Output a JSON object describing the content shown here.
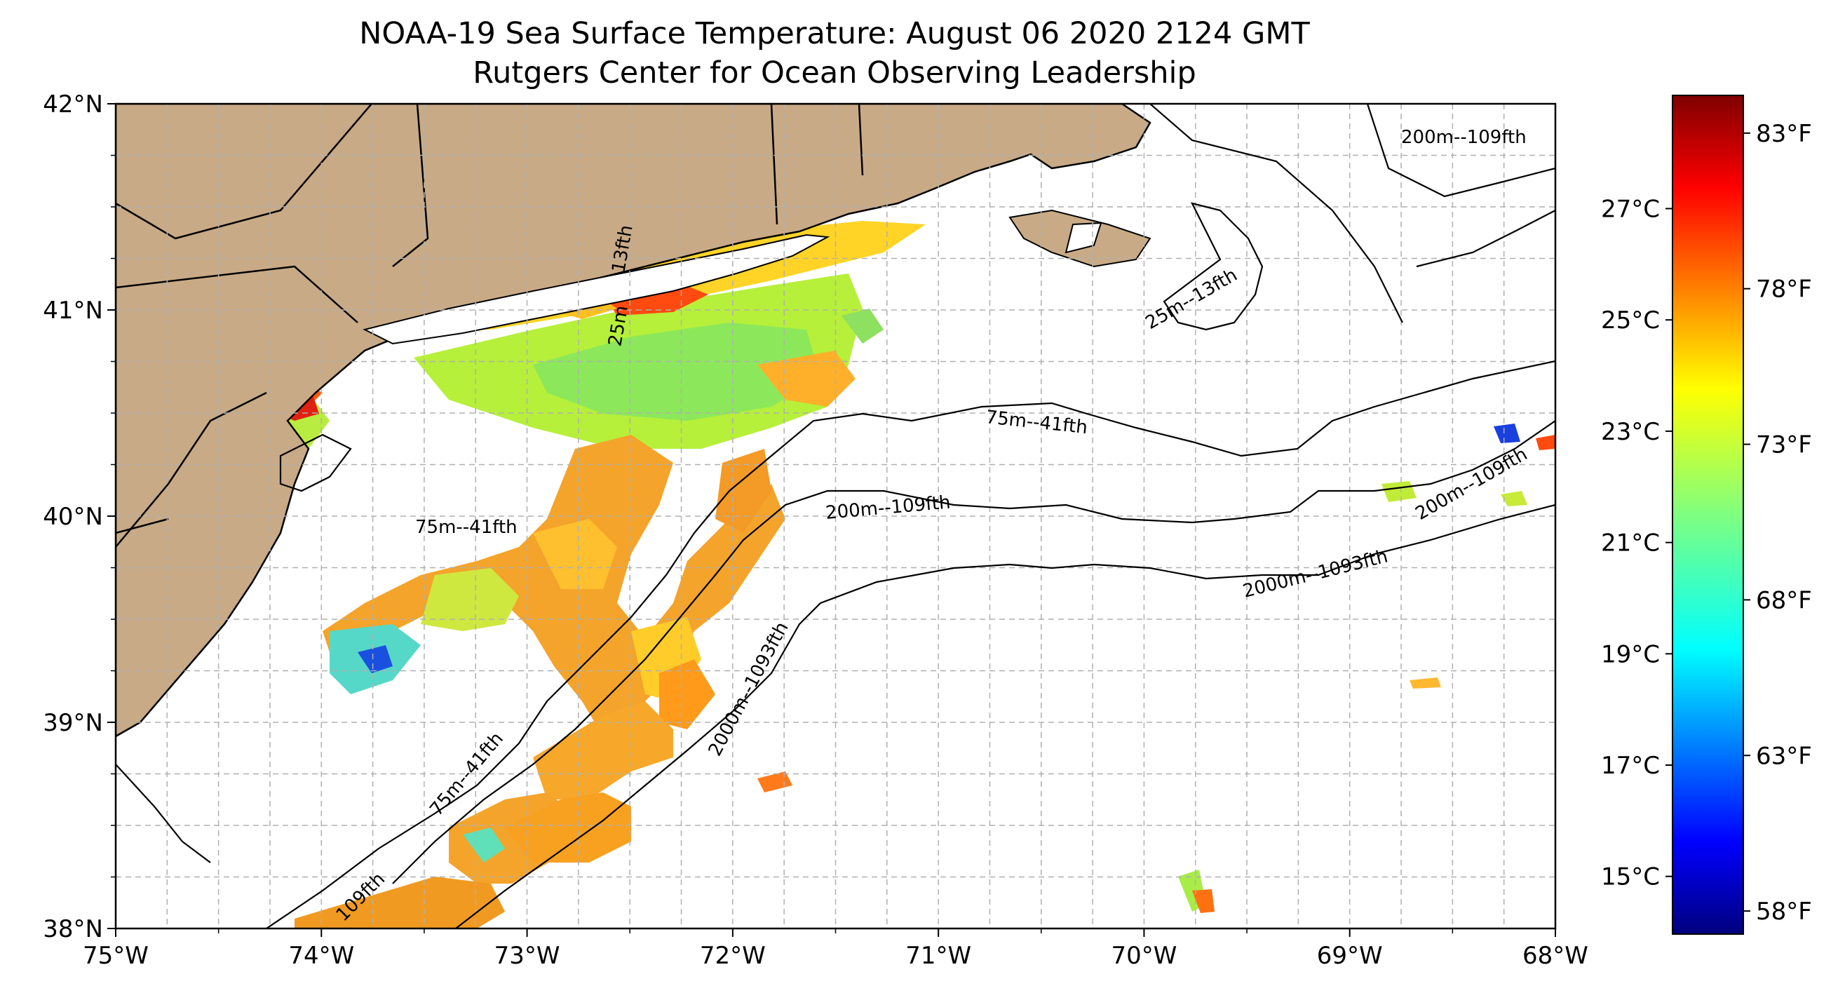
{
  "title": {
    "line1": "NOAA-19 Sea Surface Temperature: August 06 2020 2124 GMT",
    "line2": "Rutgers Center for Ocean Observing Leadership"
  },
  "map": {
    "lon_range": [
      -75,
      -68
    ],
    "lat_range": [
      38,
      42
    ],
    "lon_ticks": [
      "75°W",
      "74°W",
      "73°W",
      "72°W",
      "71°W",
      "70°W",
      "69°W",
      "68°W"
    ],
    "lat_ticks": [
      "38°N",
      "39°N",
      "40°N",
      "41°N",
      "42°N"
    ],
    "grid": true,
    "land_color": "#c8aa86",
    "isobath_labels": [
      {
        "text": "200m--109fth"
      },
      {
        "text": "25m--13fth"
      },
      {
        "text": "75m--41fth"
      },
      {
        "text": "200m--109fth"
      },
      {
        "text": "200m--109fth"
      },
      {
        "text": "75m--41fth"
      },
      {
        "text": "2000m--1093fth"
      },
      {
        "text": "2000m--1093fth"
      },
      {
        "text": "75m--41fth"
      },
      {
        "text": "109fth"
      },
      {
        "text": "13fth"
      },
      {
        "text": "25m"
      }
    ]
  },
  "colorbar": {
    "colormap": "jet",
    "celsius_ticks": [
      "27°C",
      "25°C",
      "23°C",
      "21°C",
      "19°C",
      "17°C",
      "15°C"
    ],
    "fahrenheit_ticks": [
      "83°F",
      "78°F",
      "73°F",
      "68°F",
      "63°F",
      "58°F"
    ]
  }
}
